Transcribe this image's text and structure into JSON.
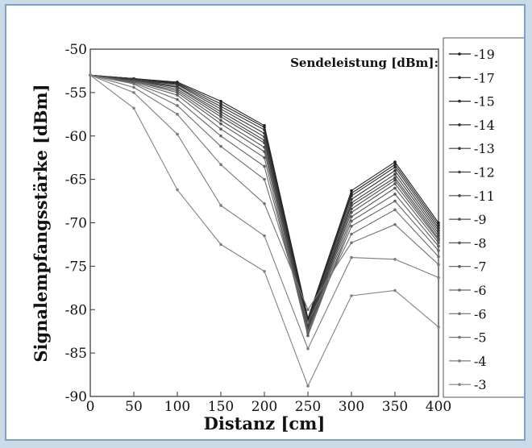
{
  "chart_data": {
    "type": "line",
    "title": "",
    "xlabel": "Distanz [cm]",
    "ylabel": "Signalempfangsstärke [dBm]",
    "xlim": [
      0,
      400
    ],
    "ylim": [
      -90,
      -50
    ],
    "x": [
      0,
      50,
      100,
      150,
      200,
      250,
      300,
      350,
      400
    ],
    "x_ticks": [
      "0",
      "50",
      "100",
      "150",
      "200",
      "250",
      "300",
      "350",
      "400"
    ],
    "y_ticks": [
      "-50",
      "-55",
      "-60",
      "-65",
      "-70",
      "-75",
      "-80",
      "-85",
      "-90"
    ],
    "grid": false,
    "legend": {
      "title": "Sendeleistung [dBm]:",
      "placement": "right, partially cut off",
      "entries": [
        "-19",
        "-17",
        "-15",
        "-14",
        "-13",
        "-12",
        "-11",
        "-9",
        "-8",
        "-7",
        "-6",
        "-6",
        "-5",
        "-4",
        "-3"
      ]
    },
    "series": [
      {
        "name": "-19",
        "values": [
          -53,
          -53.4,
          -53.8,
          -56.0,
          -58.8,
          -81.0,
          -66.3,
          -63.0,
          -70.0
        ]
      },
      {
        "name": "-17",
        "values": [
          -53,
          -53.4,
          -53.9,
          -56.3,
          -59.0,
          -81.3,
          -66.6,
          -63.3,
          -70.3
        ]
      },
      {
        "name": "-15",
        "values": [
          -53,
          -53.4,
          -54.0,
          -56.6,
          -59.3,
          -81.5,
          -66.9,
          -63.6,
          -70.6
        ]
      },
      {
        "name": "-14",
        "values": [
          -53,
          -53.5,
          -54.1,
          -56.9,
          -59.7,
          -81.8,
          -67.3,
          -64.0,
          -70.9
        ]
      },
      {
        "name": "-13",
        "values": [
          -53,
          -53.5,
          -54.3,
          -57.2,
          -60.1,
          -82.0,
          -67.7,
          -64.4,
          -71.2
        ]
      },
      {
        "name": "-12",
        "values": [
          -53,
          -53.6,
          -54.4,
          -57.5,
          -60.5,
          -82.2,
          -68.0,
          -64.8,
          -71.5
        ]
      },
      {
        "name": "-11",
        "values": [
          -53,
          -53.6,
          -54.6,
          -57.8,
          -60.8,
          -82.3,
          -68.4,
          -65.1,
          -71.8
        ]
      },
      {
        "name": "-9",
        "values": [
          -53,
          -53.7,
          -54.8,
          -58.2,
          -61.3,
          -82.5,
          -68.8,
          -65.5,
          -72.0
        ]
      },
      {
        "name": "-8",
        "values": [
          -53,
          -53.7,
          -55.0,
          -58.6,
          -61.8,
          -82.7,
          -69.3,
          -66.0,
          -72.3
        ]
      },
      {
        "name": "-7",
        "values": [
          -53,
          -53.8,
          -55.3,
          -59.2,
          -62.5,
          -83.0,
          -69.8,
          -66.7,
          -72.7
        ]
      },
      {
        "name": "-6",
        "values": [
          -53,
          -53.9,
          -55.8,
          -60.0,
          -63.5,
          -82.5,
          -70.4,
          -67.5,
          -73.2
        ]
      },
      {
        "name": "-6",
        "values": [
          -53,
          -54.0,
          -56.5,
          -61.2,
          -65.0,
          -81.5,
          -71.3,
          -68.5,
          -73.9
        ]
      },
      {
        "name": "-5",
        "values": [
          -53,
          -54.4,
          -57.5,
          -63.3,
          -67.8,
          -80.0,
          -72.3,
          -70.2,
          -74.8
        ]
      },
      {
        "name": "-4",
        "values": [
          -53,
          -55.0,
          -59.8,
          -68.0,
          -71.5,
          -84.5,
          -74.0,
          -74.2,
          -76.3
        ]
      },
      {
        "name": "-3",
        "values": [
          -53,
          -56.8,
          -66.2,
          -72.5,
          -75.6,
          -88.8,
          -78.4,
          -77.8,
          -82.0
        ]
      }
    ]
  }
}
